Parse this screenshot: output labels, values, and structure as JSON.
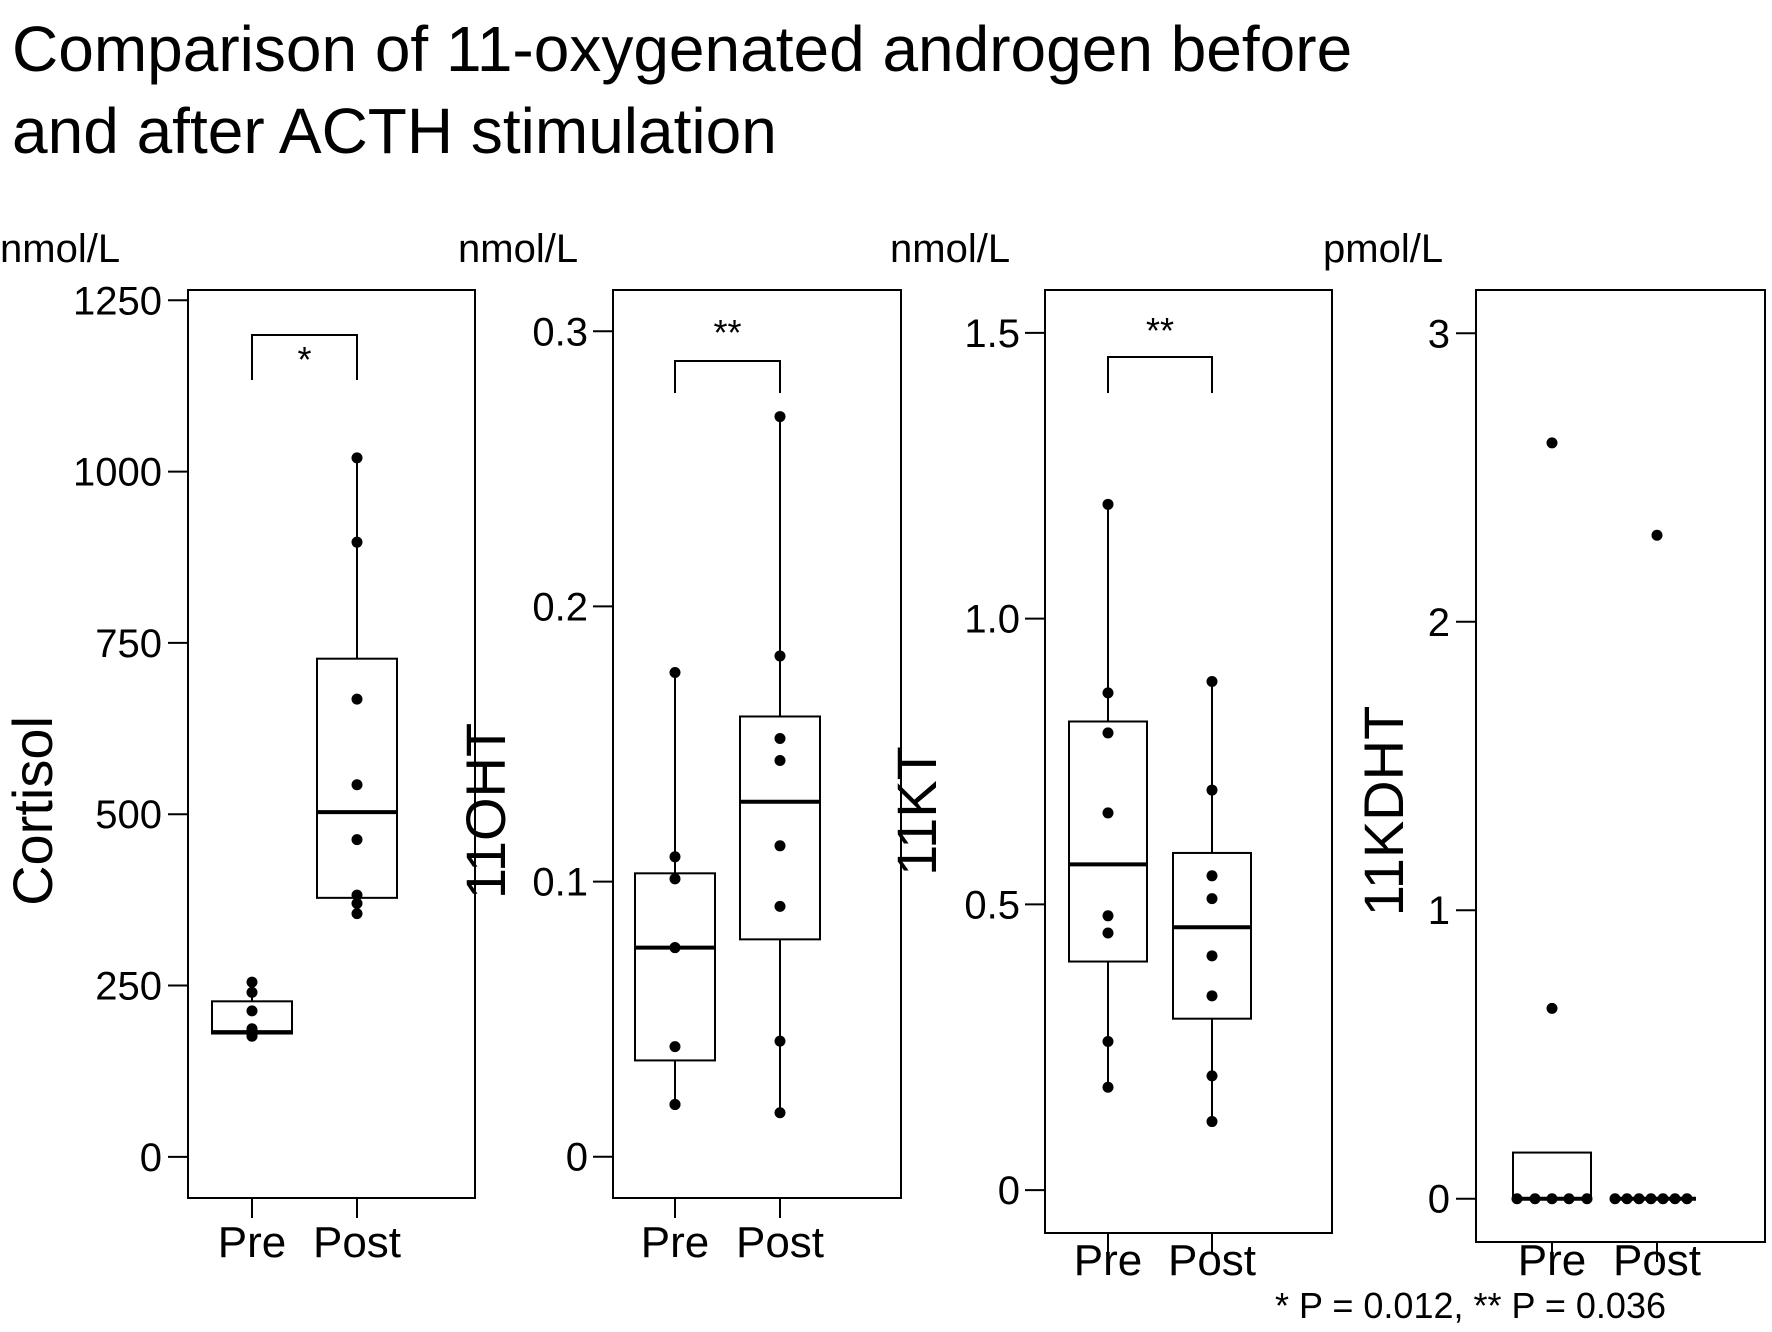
{
  "title": {
    "line1": "Comparison of 11-oxygenated androgen before",
    "line2": "and after ACTH stimulation"
  },
  "footnote": "* P = 0.012,  ** P = 0.036",
  "chart_data": [
    {
      "type": "box",
      "unit": "nmol/L",
      "ylabel": "Cortisol",
      "yticks": [
        "0",
        "250",
        "500",
        "750",
        "1000",
        "1250"
      ],
      "ylim": [
        -60,
        1265
      ],
      "categories": [
        "Pre",
        "Post"
      ],
      "significance": "*",
      "series": [
        {
          "name": "Pre",
          "box": {
            "q1": 180,
            "median": 182,
            "q3": 227,
            "low": 175,
            "high": 255
          },
          "points": [
            176,
            178,
            180,
            183,
            187,
            213,
            240,
            255
          ]
        },
        {
          "name": "Post",
          "box": {
            "q1": 378,
            "median": 503,
            "q3": 727,
            "low": 355,
            "high": 1020
          },
          "points": [
            355,
            370,
            382,
            463,
            543,
            668,
            897,
            1020
          ]
        }
      ]
    },
    {
      "type": "box",
      "unit": "nmol/L",
      "ylabel": "11OHT",
      "yticks": [
        "0",
        "0.1",
        "0.2",
        "0.3"
      ],
      "ylim": [
        -0.015,
        0.315
      ],
      "categories": [
        "Pre",
        "Post"
      ],
      "significance": "**",
      "series": [
        {
          "name": "Pre",
          "box": {
            "q1": 0.035,
            "median": 0.076,
            "q3": 0.103,
            "low": 0.019,
            "high": 0.176
          },
          "points": [
            0.019,
            0.019,
            0.04,
            0.076,
            0.076,
            0.101,
            0.109,
            0.176
          ]
        },
        {
          "name": "Post",
          "box": {
            "q1": 0.079,
            "median": 0.129,
            "q3": 0.16,
            "low": 0.016,
            "high": 0.269
          },
          "points": [
            0.016,
            0.042,
            0.091,
            0.113,
            0.144,
            0.152,
            0.182,
            0.269
          ]
        }
      ]
    },
    {
      "type": "box",
      "unit": "nmol/L",
      "ylabel": "11KT",
      "yticks": [
        "0",
        "0.5",
        "1.0",
        "1.5"
      ],
      "ylim": [
        -0.075,
        1.575
      ],
      "categories": [
        "Pre",
        "Post"
      ],
      "significance": "**",
      "series": [
        {
          "name": "Pre",
          "box": {
            "q1": 0.4,
            "median": 0.57,
            "q3": 0.82,
            "low": 0.18,
            "high": 1.2
          },
          "points": [
            0.18,
            0.26,
            0.45,
            0.48,
            0.66,
            0.8,
            0.87,
            1.2
          ]
        },
        {
          "name": "Post",
          "box": {
            "q1": 0.3,
            "median": 0.46,
            "q3": 0.59,
            "low": 0.12,
            "high": 0.89
          },
          "points": [
            0.12,
            0.2,
            0.34,
            0.41,
            0.51,
            0.55,
            0.7,
            0.89
          ]
        }
      ]
    },
    {
      "type": "box",
      "unit": "pmol/L",
      "ylabel": "11KDHT",
      "yticks": [
        "0",
        "1",
        "2",
        "3"
      ],
      "ylim": [
        -0.15,
        3.15
      ],
      "categories": [
        "Pre",
        "Post"
      ],
      "significance": "",
      "series": [
        {
          "name": "Pre",
          "box": {
            "q1": 0,
            "median": 0,
            "q3": 0.16,
            "low": 0,
            "high": 0.16
          },
          "points": [
            0,
            0,
            0,
            0,
            0,
            0.66,
            2.62
          ],
          "point_offsets": [
            -35,
            -17,
            0,
            17,
            35,
            0,
            0
          ]
        },
        {
          "name": "Post",
          "box": {
            "q1": 0,
            "median": 0,
            "q3": 0,
            "low": 0,
            "high": 0
          },
          "points": [
            0,
            0,
            0,
            0,
            0,
            0,
            0,
            2.3
          ],
          "point_offsets": [
            -42,
            -30,
            -18,
            -6,
            6,
            18,
            30,
            0
          ]
        }
      ]
    }
  ]
}
